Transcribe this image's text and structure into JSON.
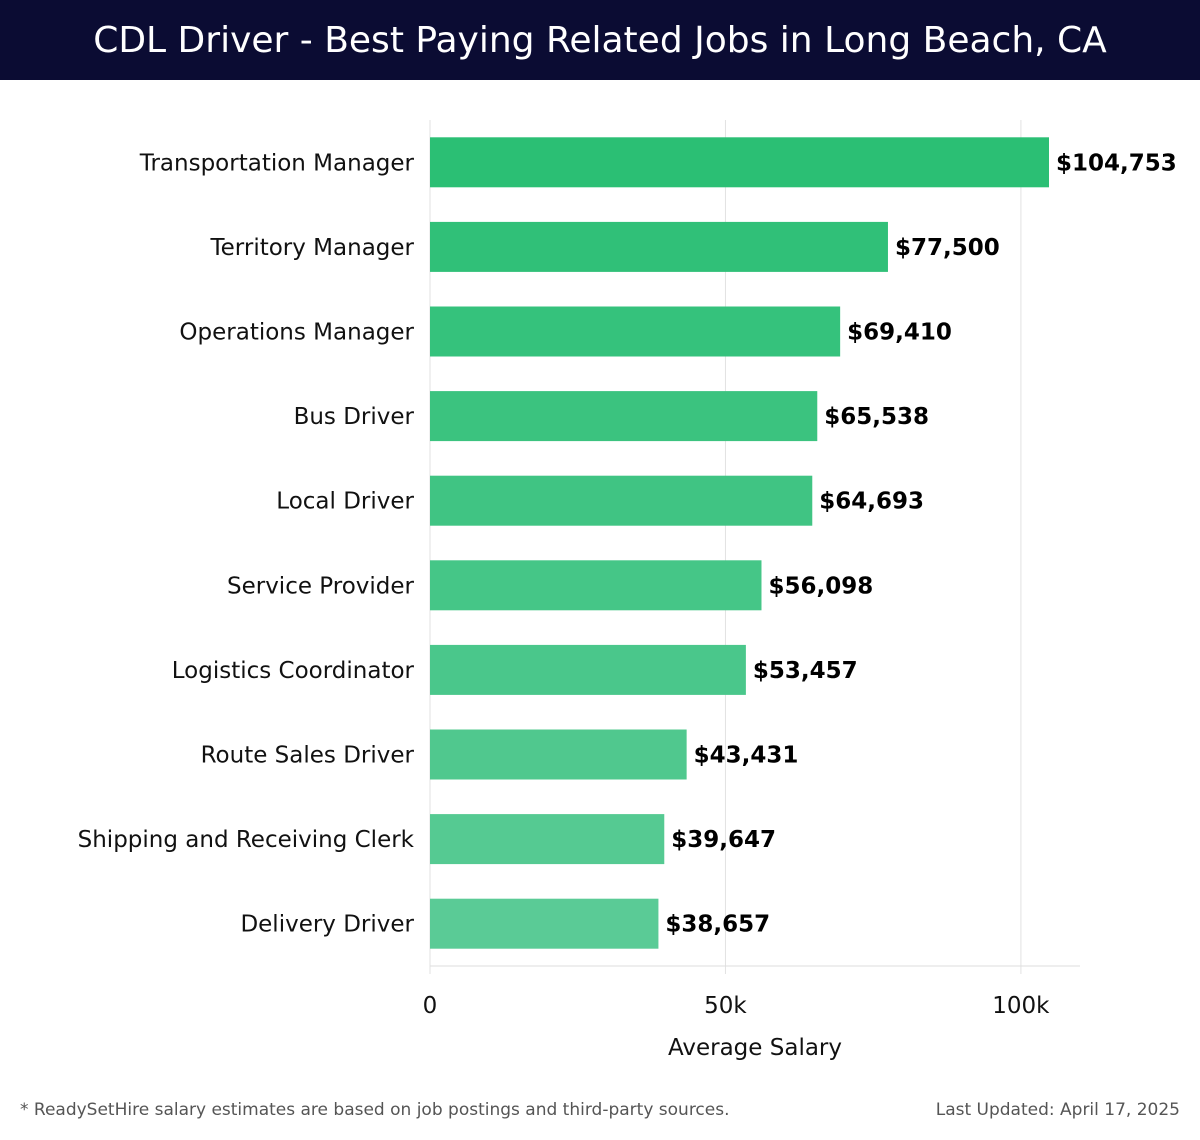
{
  "title": "CDL Driver - Best Paying Related Jobs in Long Beach, CA",
  "footer": {
    "note": "* ReadySetHire salary estimates are based on job postings and third-party sources.",
    "updated": "Last Updated: April 17, 2025"
  },
  "colors": {
    "header_bg": "#0b0c33",
    "bar_top": "#2bbf74",
    "bar_bottom": "#5acb96"
  },
  "chart_data": {
    "type": "bar",
    "orientation": "horizontal",
    "categories": [
      "Transportation Manager",
      "Territory Manager",
      "Operations Manager",
      "Bus Driver",
      "Local Driver",
      "Service Provider",
      "Logistics Coordinator",
      "Route Sales Driver",
      "Shipping and Receiving Clerk",
      "Delivery Driver"
    ],
    "values": [
      104753,
      77500,
      69410,
      65538,
      64693,
      56098,
      53457,
      43431,
      39647,
      38657
    ],
    "value_labels": [
      "$104,753",
      "$77,500",
      "$69,410",
      "$65,538",
      "$64,693",
      "$56,098",
      "$53,457",
      "$43,431",
      "$39,647",
      "$38,657"
    ],
    "xlabel": "Average Salary",
    "xlim": [
      0,
      110000
    ],
    "xticks": [
      0,
      50000,
      100000
    ],
    "xtick_labels": [
      "0",
      "50k",
      "100k"
    ],
    "grid": true
  }
}
